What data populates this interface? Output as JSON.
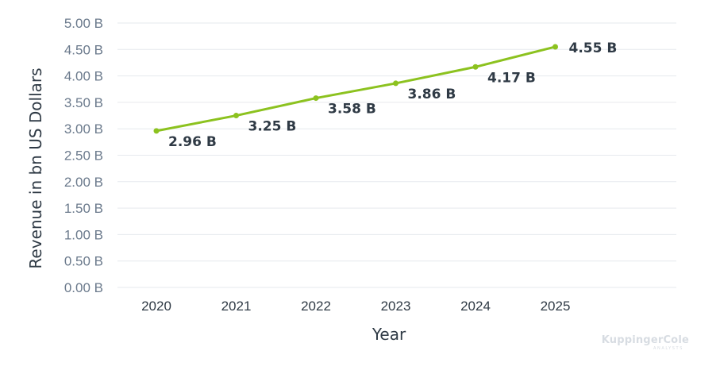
{
  "chart_data": {
    "type": "line",
    "x": [
      "2020",
      "2021",
      "2022",
      "2023",
      "2024",
      "2025"
    ],
    "series": [
      {
        "values": [
          2.96,
          3.25,
          3.58,
          3.86,
          4.17,
          4.55
        ],
        "labels": [
          "2.96 B",
          "3.25 B",
          "3.58 B",
          "3.86 B",
          "4.17 B",
          "4.55 B"
        ],
        "color": "#8cc21f"
      }
    ],
    "yticks": [
      "0.00 B",
      "0.50 B",
      "1.00 B",
      "1.50 B",
      "2.00 B",
      "2.50 B",
      "3.00 B",
      "3.50 B",
      "4.00 B",
      "4.50 B",
      "5.00 B"
    ],
    "ylim": [
      0,
      5
    ],
    "xlabel": "Year",
    "ylabel": "Revenue in bn US Dollars",
    "grid": true
  },
  "watermark": {
    "brand": "KuppingerCole",
    "sub": "ANALYSTS"
  }
}
